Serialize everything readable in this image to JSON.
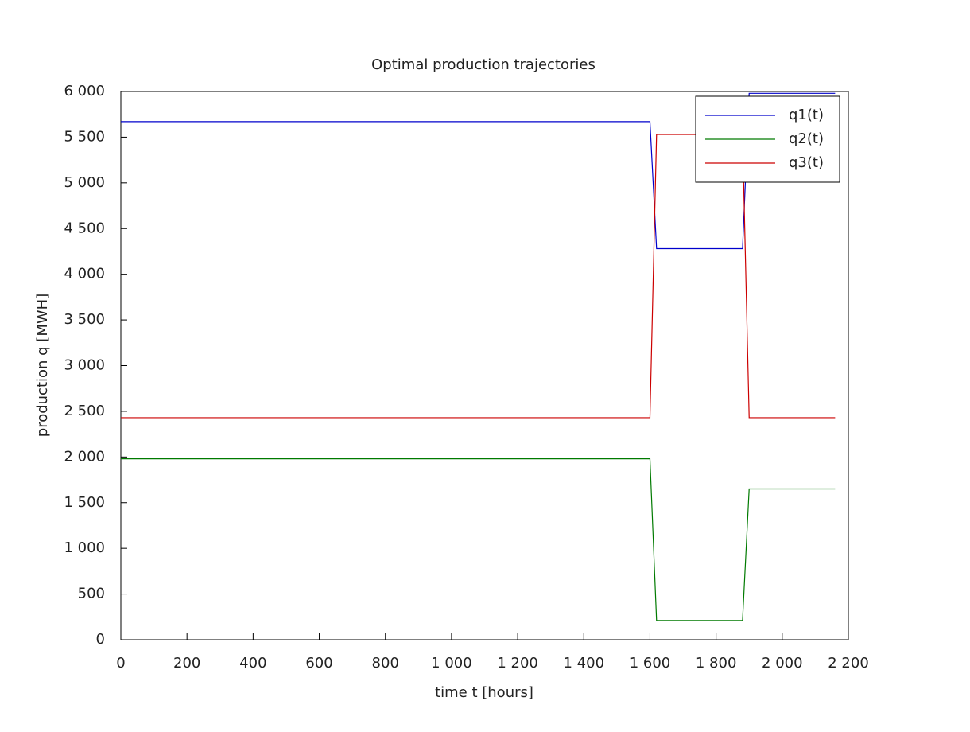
{
  "chart_data": {
    "type": "line",
    "title": "Optimal production trajectories",
    "xlabel": "time t [hours]",
    "ylabel": "production q [MWH]",
    "x": [
      0,
      1600,
      1620,
      1880,
      1900,
      2160
    ],
    "series": [
      {
        "name": "q1(t)",
        "color": "#0000cc",
        "values": [
          5670,
          5670,
          4280,
          4280,
          5980,
          5980
        ]
      },
      {
        "name": "q2(t)",
        "color": "#007a00",
        "values": [
          1980,
          1980,
          210,
          210,
          1650,
          1650
        ]
      },
      {
        "name": "q3(t)",
        "color": "#cc0000",
        "values": [
          2430,
          2430,
          5530,
          5530,
          2430,
          2430
        ]
      }
    ],
    "xlim": [
      0,
      2200
    ],
    "ylim": [
      0,
      6000
    ],
    "xticks": [
      0,
      200,
      400,
      600,
      800,
      {
        "value": 1000,
        "label": "1 000"
      },
      {
        "value": 1200,
        "label": "1 200"
      },
      {
        "value": 1400,
        "label": "1 400"
      },
      {
        "value": 1600,
        "label": "1 600"
      },
      {
        "value": 1800,
        "label": "1 800"
      },
      {
        "value": 2000,
        "label": "2 000"
      },
      {
        "value": 2200,
        "label": "2 200"
      }
    ],
    "yticks": [
      0,
      500,
      {
        "value": 1000,
        "label": "1 000"
      },
      {
        "value": 1500,
        "label": "1 500"
      },
      {
        "value": 2000,
        "label": "2 000"
      },
      {
        "value": 2500,
        "label": "2 500"
      },
      {
        "value": 3000,
        "label": "3 000"
      },
      {
        "value": 3500,
        "label": "3 500"
      },
      {
        "value": 4000,
        "label": "4 000"
      },
      {
        "value": 4500,
        "label": "4 500"
      },
      {
        "value": 5000,
        "label": "5 000"
      },
      {
        "value": 5500,
        "label": "5 500"
      },
      {
        "value": 6000,
        "label": "6 000"
      }
    ],
    "legend": "upper right"
  }
}
